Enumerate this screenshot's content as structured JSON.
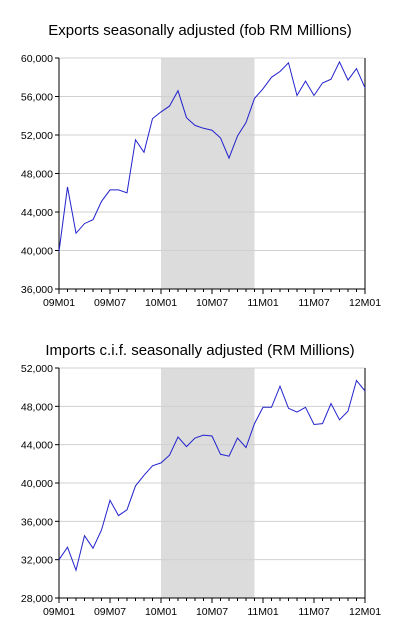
{
  "chart_data": [
    {
      "type": "line",
      "title": "Exports seasonally adjusted (fob RM Millions)",
      "xlabel": "",
      "ylabel": "",
      "ylim": [
        36000,
        60000
      ],
      "yticks": [
        36000,
        40000,
        44000,
        48000,
        52000,
        56000,
        60000
      ],
      "ytick_labels": [
        "36,000",
        "40,000",
        "44,000",
        "48,000",
        "52,000",
        "56,000",
        "60,000"
      ],
      "xtick_labels": [
        "09M01",
        "09M07",
        "10M01",
        "10M07",
        "11M01",
        "11M07",
        "12M01"
      ],
      "shaded_region": [
        "10M01",
        "10M12"
      ],
      "grid": "horizontal",
      "line_color": "#2222cc",
      "shade_color": "#dcdcdc",
      "x": [
        "09M01",
        "09M02",
        "09M03",
        "09M04",
        "09M05",
        "09M06",
        "09M07",
        "09M08",
        "09M09",
        "09M10",
        "09M11",
        "09M12",
        "10M01",
        "10M02",
        "10M03",
        "10M04",
        "10M05",
        "10M06",
        "10M07",
        "10M08",
        "10M09",
        "10M10",
        "10M11",
        "10M12",
        "11M01",
        "11M02",
        "11M03",
        "11M04",
        "11M05",
        "11M06",
        "11M07",
        "11M08",
        "11M09",
        "11M10",
        "11M11",
        "11M12",
        "12M01"
      ],
      "series": [
        {
          "values": [
            39900,
            46600,
            41800,
            42800,
            43200,
            45100,
            46300,
            46300,
            46000,
            51500,
            50200,
            53700,
            54400,
            55000,
            56600,
            53800,
            53000,
            52700,
            52500,
            51700,
            49600,
            51900,
            53300,
            55800,
            56800,
            58000,
            58600,
            59500,
            56100,
            57600,
            56100,
            57400,
            57800,
            59600,
            57700,
            58900,
            56900
          ]
        }
      ]
    },
    {
      "type": "line",
      "title": "Imports c.i.f. seasonally adjusted (RM Millions)",
      "xlabel": "",
      "ylabel": "",
      "ylim": [
        28000,
        52000
      ],
      "yticks": [
        28000,
        32000,
        36000,
        40000,
        44000,
        48000,
        52000
      ],
      "ytick_labels": [
        "28,000",
        "32,000",
        "36,000",
        "40,000",
        "44,000",
        "48,000",
        "52,000"
      ],
      "xtick_labels": [
        "09M01",
        "09M07",
        "10M01",
        "10M07",
        "11M01",
        "11M07",
        "12M01"
      ],
      "shaded_region": [
        "10M01",
        "10M12"
      ],
      "grid": "horizontal",
      "line_color": "#2222cc",
      "shade_color": "#dcdcdc",
      "x": [
        "09M01",
        "09M02",
        "09M03",
        "09M04",
        "09M05",
        "09M06",
        "09M07",
        "09M08",
        "09M09",
        "09M10",
        "09M11",
        "09M12",
        "10M01",
        "10M02",
        "10M03",
        "10M04",
        "10M05",
        "10M06",
        "10M07",
        "10M08",
        "10M09",
        "10M10",
        "10M11",
        "10M12",
        "11M01",
        "11M02",
        "11M03",
        "11M04",
        "11M05",
        "11M06",
        "11M07",
        "11M08",
        "11M09",
        "11M10",
        "11M11",
        "11M12",
        "12M01"
      ],
      "series": [
        {
          "values": [
            32000,
            33300,
            30900,
            34500,
            33200,
            35100,
            38200,
            36600,
            37200,
            39700,
            40800,
            41800,
            42100,
            42900,
            44800,
            43800,
            44700,
            45000,
            44900,
            43000,
            42800,
            44700,
            43700,
            46200,
            47900,
            47900,
            50100,
            47800,
            47400,
            47900,
            46100,
            46200,
            48300,
            46600,
            47500,
            50700,
            49600
          ]
        }
      ]
    }
  ]
}
